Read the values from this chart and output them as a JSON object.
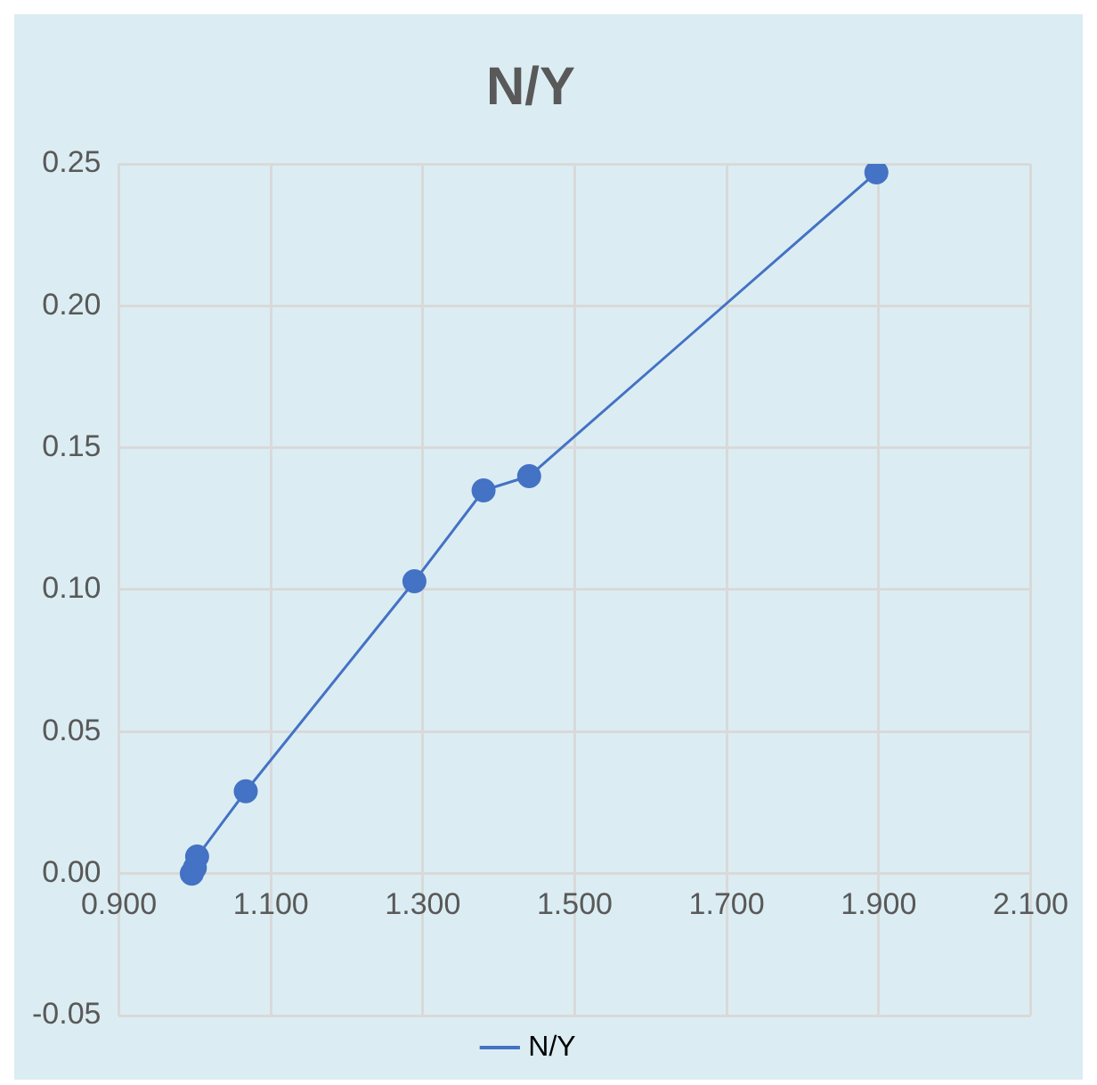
{
  "chart_data": {
    "type": "line",
    "title": "N/Y",
    "x": [
      0.996,
      1.0,
      1.003,
      1.067,
      1.289,
      1.38,
      1.44,
      1.897
    ],
    "series": [
      {
        "name": "N/Y",
        "color": "#4472c4",
        "values": [
          0.0,
          0.002,
          0.006,
          0.029,
          0.103,
          0.135,
          0.14,
          0.247
        ]
      }
    ],
    "xlim": [
      0.9,
      2.1
    ],
    "xticks": [
      {
        "value": 0.9,
        "label": "0.900"
      },
      {
        "value": 1.1,
        "label": "1.100"
      },
      {
        "value": 1.3,
        "label": "1.300"
      },
      {
        "value": 1.5,
        "label": "1.500"
      },
      {
        "value": 1.7,
        "label": "1.700"
      },
      {
        "value": 1.9,
        "label": "1.900"
      },
      {
        "value": 2.1,
        "label": "2.100"
      }
    ],
    "ylim": [
      -0.05,
      0.25
    ],
    "yticks": [
      {
        "value": -0.05,
        "label": "-0.05"
      },
      {
        "value": 0,
        "label": "0.00"
      },
      {
        "value": 0.05,
        "label": "0.05"
      },
      {
        "value": 0.1,
        "label": "0.10"
      },
      {
        "value": 0.15,
        "label": "0.15"
      },
      {
        "value": 0.2,
        "label": "0.20"
      },
      {
        "value": 0.25,
        "label": "0.25"
      }
    ],
    "grid": true,
    "legend": "bottom",
    "marker": "circle",
    "line_style": "solid"
  }
}
